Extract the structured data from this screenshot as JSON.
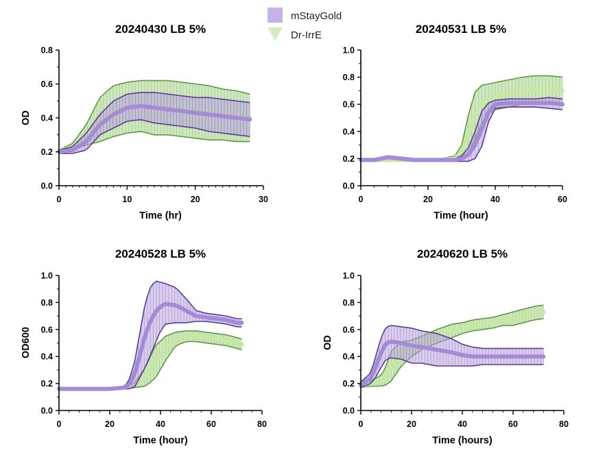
{
  "legend": [
    {
      "name": "mStayGold",
      "symbol": "square"
    },
    {
      "name": "Dr-IrrE",
      "symbol": "triangle-down"
    }
  ],
  "colors": {
    "mStayGold": {
      "line": "#a58bd6",
      "band": "#b9a5e0",
      "edge": "#5a3b9a"
    },
    "Dr-IrrE": {
      "line": "#c6e8a2",
      "band": "#a8d48a",
      "edge": "#5e9a3e"
    }
  },
  "chart_data": [
    {
      "type": "line",
      "title": "20240430 LB 5%",
      "xlabel": "Time (hr)",
      "ylabel": "OD",
      "xlim": [
        0,
        30
      ],
      "ylim": [
        0,
        0.8
      ],
      "xticks": [
        "0",
        "10",
        "20",
        "30"
      ],
      "yticks": [
        "0.0",
        "0.2",
        "0.4",
        "0.6",
        "0.8"
      ],
      "error_bars": "sd",
      "series": [
        {
          "name": "Dr-IrrE",
          "x": [
            0,
            2,
            4,
            6,
            8,
            10,
            12,
            14,
            16,
            18,
            20,
            22,
            24,
            26,
            28
          ],
          "y": [
            0.2,
            0.23,
            0.3,
            0.39,
            0.44,
            0.46,
            0.47,
            0.46,
            0.46,
            0.45,
            0.44,
            0.43,
            0.42,
            0.41,
            0.4
          ],
          "error": [
            0.01,
            0.02,
            0.06,
            0.13,
            0.15,
            0.15,
            0.15,
            0.16,
            0.16,
            0.16,
            0.16,
            0.16,
            0.15,
            0.15,
            0.14
          ]
        },
        {
          "name": "mStayGold",
          "x": [
            0,
            2,
            4,
            6,
            8,
            10,
            12,
            14,
            16,
            18,
            20,
            22,
            24,
            26,
            28
          ],
          "y": [
            0.2,
            0.21,
            0.26,
            0.36,
            0.42,
            0.46,
            0.47,
            0.46,
            0.45,
            0.44,
            0.43,
            0.42,
            0.41,
            0.4,
            0.39
          ],
          "error": [
            0.01,
            0.02,
            0.05,
            0.06,
            0.08,
            0.08,
            0.08,
            0.09,
            0.09,
            0.09,
            0.09,
            0.1,
            0.1,
            0.1,
            0.1
          ]
        }
      ]
    },
    {
      "type": "line",
      "title": "20240531 LB 5%",
      "xlabel": "Time (hour)",
      "ylabel": "",
      "xlim": [
        0,
        60
      ],
      "ylim": [
        0,
        1.0
      ],
      "xticks": [
        "0",
        "20",
        "40",
        "60"
      ],
      "yticks": [
        "0.0",
        "0.2",
        "0.4",
        "0.6",
        "0.8",
        "1.0"
      ],
      "error_bars": "sd",
      "series": [
        {
          "name": "Dr-IrrE",
          "x": [
            0,
            4,
            8,
            12,
            16,
            20,
            24,
            28,
            30,
            32,
            34,
            36,
            38,
            40,
            44,
            48,
            52,
            56,
            60
          ],
          "y": [
            0.19,
            0.19,
            0.19,
            0.19,
            0.19,
            0.19,
            0.19,
            0.2,
            0.25,
            0.38,
            0.52,
            0.6,
            0.64,
            0.66,
            0.68,
            0.7,
            0.71,
            0.71,
            0.7
          ],
          "error": [
            0.01,
            0.01,
            0.01,
            0.01,
            0.01,
            0.01,
            0.01,
            0.02,
            0.05,
            0.14,
            0.17,
            0.14,
            0.11,
            0.1,
            0.1,
            0.1,
            0.1,
            0.1,
            0.1
          ]
        },
        {
          "name": "mStayGold",
          "x": [
            0,
            4,
            8,
            12,
            16,
            20,
            24,
            28,
            30,
            32,
            34,
            36,
            38,
            40,
            44,
            48,
            52,
            56,
            60
          ],
          "y": [
            0.19,
            0.19,
            0.21,
            0.2,
            0.19,
            0.19,
            0.19,
            0.19,
            0.2,
            0.23,
            0.3,
            0.42,
            0.54,
            0.6,
            0.61,
            0.61,
            0.61,
            0.61,
            0.6
          ],
          "error": [
            0.01,
            0.01,
            0.01,
            0.01,
            0.01,
            0.01,
            0.01,
            0.01,
            0.02,
            0.05,
            0.1,
            0.13,
            0.07,
            0.03,
            0.03,
            0.03,
            0.03,
            0.04,
            0.04
          ]
        }
      ]
    },
    {
      "type": "line",
      "title": "20240528 LB 5%",
      "xlabel": "Time (hour)",
      "ylabel": "OD600",
      "xlim": [
        0,
        80
      ],
      "ylim": [
        0,
        1.0
      ],
      "xticks": [
        "0",
        "20",
        "40",
        "60",
        "80"
      ],
      "yticks": [
        "0.0",
        "0.2",
        "0.4",
        "0.6",
        "0.8",
        "1.0"
      ],
      "error_bars": "sd",
      "series": [
        {
          "name": "Dr-IrrE",
          "x": [
            0,
            10,
            20,
            26,
            30,
            34,
            38,
            42,
            46,
            50,
            54,
            58,
            62,
            66,
            70,
            72
          ],
          "y": [
            0.16,
            0.16,
            0.16,
            0.17,
            0.19,
            0.25,
            0.36,
            0.46,
            0.53,
            0.55,
            0.55,
            0.54,
            0.53,
            0.52,
            0.5,
            0.49
          ],
          "error": [
            0.005,
            0.005,
            0.005,
            0.01,
            0.02,
            0.07,
            0.12,
            0.09,
            0.05,
            0.04,
            0.04,
            0.04,
            0.04,
            0.04,
            0.04,
            0.04
          ]
        },
        {
          "name": "mStayGold",
          "x": [
            0,
            10,
            20,
            26,
            28,
            30,
            32,
            34,
            36,
            38,
            40,
            42,
            46,
            50,
            54,
            58,
            62,
            66,
            70,
            72
          ],
          "y": [
            0.16,
            0.16,
            0.16,
            0.17,
            0.2,
            0.28,
            0.42,
            0.56,
            0.66,
            0.73,
            0.77,
            0.79,
            0.78,
            0.74,
            0.7,
            0.69,
            0.68,
            0.67,
            0.65,
            0.65
          ],
          "error": [
            0.005,
            0.005,
            0.005,
            0.01,
            0.04,
            0.1,
            0.17,
            0.24,
            0.25,
            0.23,
            0.18,
            0.15,
            0.13,
            0.09,
            0.04,
            0.03,
            0.03,
            0.03,
            0.03,
            0.03
          ]
        }
      ]
    },
    {
      "type": "line",
      "title": "20240620 LB 5%",
      "xlabel": "Time (hours)",
      "ylabel": "OD",
      "xlim": [
        0,
        80
      ],
      "ylim": [
        0,
        1.0
      ],
      "xticks": [
        "0",
        "20",
        "40",
        "60",
        "80"
      ],
      "yticks": [
        "0.0",
        "0.2",
        "0.4",
        "0.6",
        "0.8",
        "1.0"
      ],
      "error_bars": "sd",
      "series": [
        {
          "name": "Dr-IrrE",
          "x": [
            0,
            4,
            8,
            10,
            12,
            16,
            20,
            24,
            30,
            36,
            40,
            44,
            48,
            52,
            56,
            60,
            64,
            68,
            72
          ],
          "y": [
            0.18,
            0.2,
            0.22,
            0.26,
            0.33,
            0.42,
            0.46,
            0.5,
            0.55,
            0.59,
            0.61,
            0.63,
            0.64,
            0.65,
            0.67,
            0.68,
            0.7,
            0.72,
            0.73
          ],
          "error": [
            0.01,
            0.02,
            0.04,
            0.07,
            0.11,
            0.09,
            0.06,
            0.05,
            0.05,
            0.05,
            0.04,
            0.04,
            0.04,
            0.04,
            0.04,
            0.05,
            0.05,
            0.05,
            0.05
          ]
        },
        {
          "name": "mStayGold",
          "x": [
            0,
            4,
            6,
            8,
            10,
            12,
            16,
            20,
            24,
            30,
            36,
            40,
            44,
            48,
            52,
            56,
            60,
            64,
            68,
            72
          ],
          "y": [
            0.19,
            0.24,
            0.33,
            0.43,
            0.5,
            0.51,
            0.5,
            0.48,
            0.47,
            0.45,
            0.43,
            0.41,
            0.4,
            0.4,
            0.4,
            0.4,
            0.4,
            0.4,
            0.4,
            0.4
          ],
          "error": [
            0.02,
            0.04,
            0.08,
            0.11,
            0.12,
            0.12,
            0.12,
            0.13,
            0.12,
            0.12,
            0.1,
            0.08,
            0.07,
            0.06,
            0.06,
            0.06,
            0.06,
            0.06,
            0.06,
            0.06
          ]
        }
      ]
    }
  ]
}
